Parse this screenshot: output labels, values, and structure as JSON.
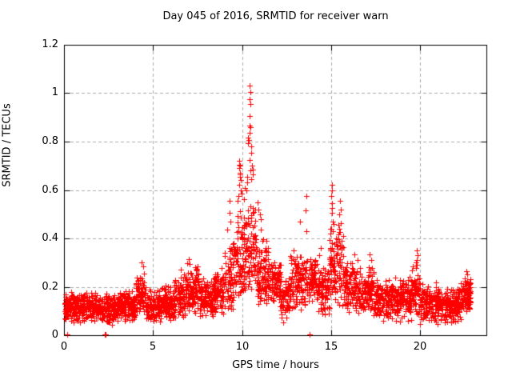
{
  "chart_data": {
    "type": "scatter",
    "title": "Day 045 of 2016, SRMTID for receiver warn",
    "xlabel": "GPS time / hours",
    "ylabel": "SRMTID / TECUs",
    "xlim": [
      0,
      23.72
    ],
    "ylim": [
      0,
      1.2
    ],
    "xticks": [
      0,
      5,
      10,
      15,
      20
    ],
    "xtick_labels": [
      "0",
      "5",
      "10",
      "15",
      "20"
    ],
    "yticks": [
      0,
      0.2,
      0.4,
      0.6,
      0.8,
      1,
      1.2
    ],
    "ytick_labels": [
      "0",
      "0.2",
      "0.4",
      "0.6",
      "0.8",
      "1",
      "1.2"
    ],
    "grid": true,
    "legend": "none",
    "marker": "plus",
    "marker_size": 7,
    "colors": {
      "marker": "#ff0000",
      "grid": "#aaaaaa",
      "frame": "#000000",
      "text": "#000000",
      "background": "#ffffff"
    },
    "series_name": "SRMTID",
    "seed": 45,
    "point_bands": [
      [
        0.05,
        1.0,
        150,
        0.04,
        0.19
      ],
      [
        1.0,
        2.0,
        150,
        0.05,
        0.18
      ],
      [
        2.0,
        3.0,
        150,
        0.04,
        0.18
      ],
      [
        3.0,
        4.0,
        150,
        0.05,
        0.2
      ],
      [
        4.0,
        4.6,
        85,
        0.06,
        0.26
      ],
      [
        4.6,
        5.4,
        115,
        0.05,
        0.19
      ],
      [
        5.4,
        6.2,
        115,
        0.05,
        0.21
      ],
      [
        6.2,
        6.8,
        85,
        0.06,
        0.26
      ],
      [
        6.8,
        7.6,
        115,
        0.08,
        0.3
      ],
      [
        7.6,
        8.4,
        115,
        0.07,
        0.24
      ],
      [
        8.4,
        9.0,
        85,
        0.08,
        0.28
      ],
      [
        9.0,
        9.5,
        65,
        0.1,
        0.45
      ],
      [
        9.5,
        10.1,
        80,
        0.15,
        0.58
      ],
      [
        10.1,
        10.8,
        95,
        0.18,
        0.62
      ],
      [
        10.8,
        11.5,
        100,
        0.12,
        0.45
      ],
      [
        11.5,
        12.2,
        95,
        0.1,
        0.32
      ],
      [
        12.2,
        12.7,
        60,
        0.05,
        0.25
      ],
      [
        12.7,
        14.2,
        185,
        0.1,
        0.36
      ],
      [
        14.2,
        14.9,
        95,
        0.08,
        0.3
      ],
      [
        14.9,
        15.2,
        45,
        0.15,
        0.5
      ],
      [
        15.2,
        15.7,
        60,
        0.12,
        0.48
      ],
      [
        15.7,
        16.4,
        95,
        0.08,
        0.32
      ],
      [
        16.4,
        17.4,
        130,
        0.07,
        0.3
      ],
      [
        17.4,
        18.5,
        150,
        0.05,
        0.24
      ],
      [
        18.5,
        19.5,
        140,
        0.05,
        0.25
      ],
      [
        19.5,
        20.0,
        70,
        0.07,
        0.3
      ],
      [
        20.0,
        21.0,
        150,
        0.04,
        0.22
      ],
      [
        21.0,
        22.0,
        150,
        0.04,
        0.2
      ],
      [
        22.0,
        22.45,
        65,
        0.05,
        0.22
      ],
      [
        22.45,
        22.85,
        75,
        0.08,
        0.26
      ]
    ],
    "spike_points": [
      [
        10.42,
        1.03
      ],
      [
        10.45,
        1.005
      ],
      [
        10.43,
        0.975
      ],
      [
        10.46,
        0.955
      ],
      [
        10.44,
        0.905
      ],
      [
        10.4,
        0.865
      ],
      [
        10.47,
        0.86
      ],
      [
        10.43,
        0.835
      ],
      [
        10.35,
        0.815
      ],
      [
        10.37,
        0.805
      ],
      [
        10.34,
        0.795
      ],
      [
        10.5,
        0.78
      ],
      [
        10.53,
        0.755
      ],
      [
        10.41,
        0.725
      ],
      [
        10.56,
        0.7
      ],
      [
        10.6,
        0.685
      ],
      [
        10.58,
        0.665
      ],
      [
        10.48,
        0.68
      ],
      [
        10.52,
        0.645
      ],
      [
        9.85,
        0.72
      ],
      [
        9.87,
        0.7
      ],
      [
        9.86,
        0.705
      ],
      [
        9.84,
        0.69
      ],
      [
        9.9,
        0.672
      ],
      [
        9.88,
        0.655
      ],
      [
        9.89,
        0.665
      ],
      [
        9.92,
        0.64
      ],
      [
        9.83,
        0.62
      ],
      [
        9.95,
        0.6
      ],
      [
        9.78,
        0.575
      ],
      [
        9.75,
        0.555
      ],
      [
        9.97,
        0.585
      ],
      [
        10.28,
        0.63
      ],
      [
        10.25,
        0.6
      ],
      [
        10.3,
        0.655
      ],
      [
        10.85,
        0.55
      ],
      [
        10.92,
        0.52
      ],
      [
        11.0,
        0.5
      ],
      [
        11.05,
        0.48
      ],
      [
        9.3,
        0.555
      ],
      [
        9.28,
        0.505
      ],
      [
        9.33,
        0.47
      ],
      [
        13.6,
        0.575
      ],
      [
        13.58,
        0.515
      ],
      [
        13.62,
        0.43
      ],
      [
        13.25,
        0.47
      ],
      [
        14.4,
        0.36
      ],
      [
        14.33,
        0.33
      ],
      [
        15.03,
        0.62
      ],
      [
        15.05,
        0.6
      ],
      [
        15.02,
        0.575
      ],
      [
        15.07,
        0.545
      ],
      [
        15.04,
        0.505
      ],
      [
        15.06,
        0.525
      ],
      [
        15.08,
        0.47
      ],
      [
        15.0,
        0.44
      ],
      [
        15.5,
        0.555
      ],
      [
        15.53,
        0.52
      ],
      [
        15.47,
        0.5
      ],
      [
        15.56,
        0.462
      ],
      [
        15.44,
        0.44
      ],
      [
        16.3,
        0.335
      ],
      [
        16.5,
        0.31
      ],
      [
        17.15,
        0.335
      ],
      [
        17.25,
        0.31
      ],
      [
        19.8,
        0.35
      ],
      [
        19.85,
        0.33
      ],
      [
        19.82,
        0.31
      ],
      [
        19.77,
        0.3
      ],
      [
        19.83,
        0.29
      ],
      [
        4.38,
        0.3
      ],
      [
        4.43,
        0.285
      ],
      [
        6.55,
        0.27
      ],
      [
        7.0,
        0.315
      ],
      [
        7.05,
        0.295
      ],
      [
        7.45,
        0.275
      ],
      [
        7.47,
        0.268
      ],
      [
        22.6,
        0.265
      ],
      [
        22.65,
        0.25
      ],
      [
        0.18,
        0.004
      ],
      [
        2.28,
        0.004
      ],
      [
        2.33,
        0.004
      ],
      [
        13.78,
        0.004
      ]
    ]
  }
}
